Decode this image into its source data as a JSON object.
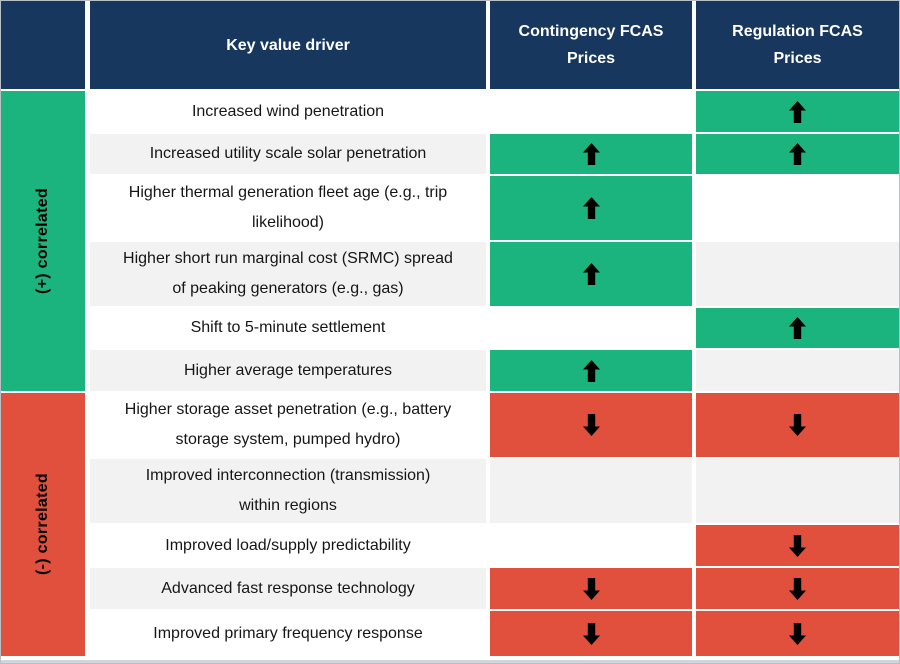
{
  "chart_data": {
    "type": "table",
    "columns": {
      "driver": "Key value driver",
      "contingency": "Contingency FCAS\nPrices",
      "regulation": "Regulation FCAS\nPrices"
    },
    "groups": {
      "positive": "(+) correlated",
      "negative": "(-) correlated"
    },
    "rows": [
      {
        "group": "positive",
        "driver": "Increased wind penetration",
        "contingency": "none",
        "regulation": "up"
      },
      {
        "group": "positive",
        "driver": "Increased utility scale solar penetration",
        "contingency": "up",
        "regulation": "up"
      },
      {
        "group": "positive",
        "driver": "Higher thermal generation fleet age (e.g., trip\nlikelihood)",
        "contingency": "up",
        "regulation": "none"
      },
      {
        "group": "positive",
        "driver": "Higher short run marginal cost (SRMC) spread\nof peaking generators (e.g., gas)",
        "contingency": "up",
        "regulation": "none"
      },
      {
        "group": "positive",
        "driver": "Shift to 5-minute settlement",
        "contingency": "none",
        "regulation": "up"
      },
      {
        "group": "positive",
        "driver": "Higher average temperatures",
        "contingency": "up",
        "regulation": "none"
      },
      {
        "group": "negative",
        "driver": "Higher storage asset penetration (e.g., battery\nstorage system, pumped hydro)",
        "contingency": "down",
        "regulation": "down"
      },
      {
        "group": "negative",
        "driver": "Improved interconnection (transmission)\nwithin regions",
        "contingency": "none",
        "regulation": "none"
      },
      {
        "group": "negative",
        "driver": "Improved load/supply predictability",
        "contingency": "none",
        "regulation": "down"
      },
      {
        "group": "negative",
        "driver": "Advanced fast response technology",
        "contingency": "down",
        "regulation": "down"
      },
      {
        "group": "negative",
        "driver": "Improved primary frequency response",
        "contingency": "down",
        "regulation": "down"
      }
    ],
    "colors": {
      "header_navy": "#17375E",
      "positive_green": "#1CB47E",
      "negative_red": "#E0503C",
      "zebra_gray": "#F2F2F2",
      "arrow_black": "#000000"
    },
    "icons": {
      "up": "up-arrow",
      "down": "down-arrow"
    }
  }
}
